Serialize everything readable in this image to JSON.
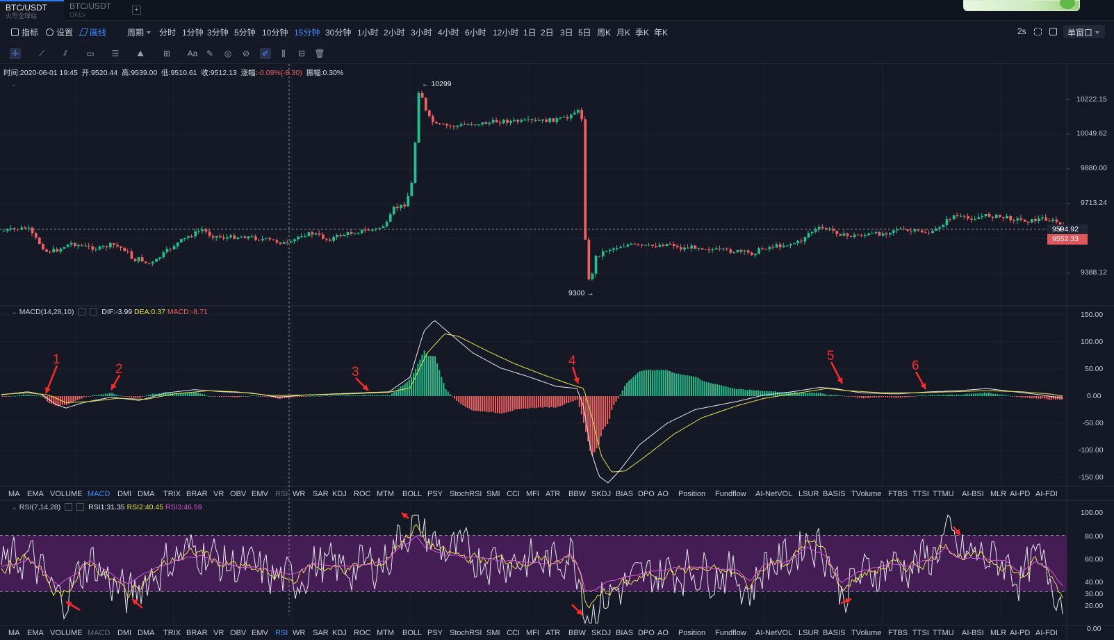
{
  "tabs": [
    {
      "pair": "BTC/USDT",
      "exchange": "火币全球站"
    },
    {
      "pair": "BTC/USDT",
      "exchange": "OKEx"
    }
  ],
  "add_tab": "+",
  "toolbar": {
    "indicators": "指标",
    "settings": "设置",
    "drawing": "画线",
    "period": "周期",
    "intervals": [
      "分时",
      "1分钟",
      "3分钟",
      "5分钟",
      "10分钟",
      "15分钟",
      "30分钟",
      "1小时",
      "2小时",
      "3小时",
      "4小时",
      "6小时",
      "12小时",
      "1日",
      "2日",
      "3日",
      "5日",
      "周K",
      "月K",
      "季K",
      "年K"
    ],
    "active_interval": "15分钟",
    "refresh": "2s",
    "window_mode": "单窗口"
  },
  "drawing_tools": [
    "crosshair-icon",
    "trendline-icon",
    "channel-icon",
    "rectangle-icon",
    "fib-icon",
    "pattern-icon",
    "measure-icon",
    "text-icon",
    "brush-icon",
    "magnet-icon",
    "ruler-icon",
    "draw-mode-icon",
    "lock-icon",
    "hide-icon",
    "delete-icon"
  ],
  "drawing_text_tool": "Aa",
  "ohlc": {
    "time_label": "时间:",
    "time": "2020-06-01 19:45",
    "open_label": "开:",
    "open": "9520.44",
    "high_label": "高:",
    "high": "9539.00",
    "low_label": "低:",
    "low": "9510.61",
    "close_label": "收:",
    "close": "9512.13",
    "change_label": "涨幅:",
    "change": "-0.09%(-8.30)",
    "amp_label": "振幅:",
    "amp": "0.30%"
  },
  "price_axis": [
    "10222.15",
    "10049.62",
    "9880.00",
    "9713.24",
    "9388.12"
  ],
  "crosshair_price": "9594.92",
  "last_price": "9552.33",
  "high_marker": "10299",
  "low_marker": "9300",
  "macd": {
    "name": "MACD(14,28,10)",
    "dif": "DIF:-3.99",
    "dea": "DEA:0.37",
    "macd": "MACD:-8.71",
    "axis": [
      "150.00",
      "100.00",
      "50.00",
      "0.00",
      "-50.00",
      "-100.00",
      "-150.00"
    ],
    "annotations": [
      "1",
      "2",
      "3",
      "4",
      "5",
      "6"
    ]
  },
  "rsi": {
    "name": "RSI(7,14,28)",
    "rsi1": "RSI1:31.35",
    "rsi2": "RSI2:40.45",
    "rsi3": "RSI3:46.59",
    "axis": [
      "100.00",
      "80.00",
      "60.00",
      "40.00",
      "30.00",
      "20.00",
      "0.00"
    ]
  },
  "indicator_tabs": [
    "MA",
    "EMA",
    "VOLUME",
    "MACD",
    "DMI",
    "DMA",
    "TRIX",
    "BRAR",
    "VR",
    "OBV",
    "EMV",
    "RSI",
    "WR",
    "SAR",
    "KDJ",
    "ROC",
    "MTM",
    "BOLL",
    "PSY",
    "StochRSI",
    "SMI",
    "CCI",
    "MFI",
    "ATR",
    "BBW",
    "SKDJ",
    "BIAS",
    "DPO",
    "AO",
    "Position",
    "Fundflow",
    "AI-NetVOL",
    "LSUR",
    "BASIS",
    "TVolume",
    "FTBS",
    "TTSI",
    "TTMU",
    "AI-BSI",
    "MLR",
    "AI-PD",
    "AI-FDI"
  ],
  "indicator_bar1_active": "MACD",
  "indicator_bar1_dim": "RSI",
  "indicator_bar2_active": "RSI",
  "indicator_bar2_dim": "MACD",
  "colors": {
    "up": "#1fc28f",
    "down": "#f2605f",
    "accent": "#3d8bff",
    "dea": "#e8e24a",
    "rsi3": "#d957d9"
  }
}
